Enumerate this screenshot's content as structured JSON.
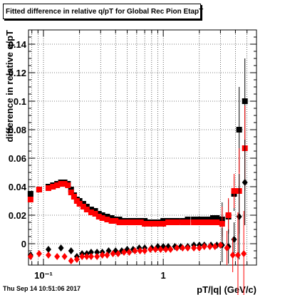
{
  "title": "Fitted difference in relative q/pT for Global Rec Pion EtapT",
  "timestamp": "Thu Sep 14 10:51:06 2017",
  "chart_data": {
    "type": "scatter",
    "title": "Fitted difference in relative q/pT for Global Rec Pion EtapT",
    "xlabel": "pT/|q| (GeV/c)",
    "ylabel": "difference in relative q/pT",
    "x_scale": "log",
    "xlim": [
      0.075,
      6.0
    ],
    "ylim": [
      -0.015,
      0.15
    ],
    "grid": true,
    "x_tick_labels": [
      "10⁻¹",
      "1"
    ],
    "y_tick_labels": [
      "0",
      "0.02",
      "0.04",
      "0.06",
      "0.08",
      "0.1",
      "0.12",
      "0.14"
    ],
    "colors": {
      "series_black": "#000000",
      "series_red": "#ff0000"
    },
    "series": [
      {
        "marker": "square",
        "color": "#000000",
        "x": [
          0.078,
          0.092,
          0.11,
          0.12,
          0.13,
          0.14,
          0.15,
          0.16,
          0.17,
          0.18,
          0.19,
          0.2,
          0.215,
          0.23,
          0.25,
          0.27,
          0.29,
          0.31,
          0.34,
          0.37,
          0.4,
          0.43,
          0.47,
          0.51,
          0.55,
          0.6,
          0.65,
          0.7,
          0.76,
          0.82,
          0.9,
          1.0,
          1.1,
          1.2,
          1.3,
          1.45,
          1.6,
          1.8,
          2.0,
          2.2,
          2.4,
          2.6,
          2.8,
          3.1,
          3.5,
          3.9,
          4.3,
          4.8
        ],
        "y": [
          0.035,
          0.038,
          0.04,
          0.041,
          0.042,
          0.043,
          0.043,
          0.042,
          0.038,
          0.034,
          0.031,
          0.03,
          0.028,
          0.026,
          0.024,
          0.023,
          0.021,
          0.02,
          0.019,
          0.018,
          0.017,
          0.017,
          0.016,
          0.016,
          0.016,
          0.016,
          0.016,
          0.016,
          0.015,
          0.015,
          0.015,
          0.016,
          0.016,
          0.016,
          0.016,
          0.016,
          0.017,
          0.017,
          0.017,
          0.017,
          0.017,
          0.018,
          0.018,
          0.017,
          0.019,
          0.035,
          0.08,
          0.1
        ]
      },
      {
        "marker": "square",
        "color": "#ff0000",
        "x": [
          0.078,
          0.092,
          0.11,
          0.12,
          0.13,
          0.14,
          0.15,
          0.16,
          0.17,
          0.18,
          0.19,
          0.2,
          0.215,
          0.23,
          0.25,
          0.27,
          0.29,
          0.31,
          0.34,
          0.37,
          0.4,
          0.43,
          0.47,
          0.51,
          0.55,
          0.6,
          0.65,
          0.7,
          0.76,
          0.82,
          0.9,
          1.0,
          1.1,
          1.2,
          1.3,
          1.45,
          1.6,
          1.8,
          2.0,
          2.2,
          2.4,
          2.6,
          2.8,
          3.1,
          3.5,
          3.9,
          4.3,
          4.8
        ],
        "y": [
          0.031,
          0.038,
          0.039,
          0.04,
          0.041,
          0.042,
          0.042,
          0.041,
          0.036,
          0.033,
          0.03,
          0.028,
          0.026,
          0.024,
          0.022,
          0.021,
          0.019,
          0.018,
          0.017,
          0.016,
          0.016,
          0.015,
          0.015,
          0.015,
          0.015,
          0.015,
          0.015,
          0.014,
          0.014,
          0.014,
          0.014,
          0.014,
          0.015,
          0.015,
          0.015,
          0.015,
          0.015,
          0.015,
          0.015,
          0.015,
          0.015,
          0.015,
          0.015,
          0.014,
          0.02,
          0.037,
          0.037,
          0.067
        ]
      },
      {
        "marker": "diamond",
        "color": "#000000",
        "x": [
          0.078,
          0.11,
          0.14,
          0.17,
          0.19,
          0.21,
          0.23,
          0.25,
          0.28,
          0.31,
          0.35,
          0.4,
          0.45,
          0.5,
          0.56,
          0.63,
          0.7,
          0.8,
          0.9,
          1.0,
          1.1,
          1.25,
          1.4,
          1.6,
          1.8,
          2.0,
          2.2,
          2.5,
          2.8,
          3.1,
          3.5,
          3.9,
          4.3,
          4.8
        ],
        "y": [
          -0.008,
          -0.004,
          -0.003,
          -0.005,
          -0.009,
          -0.007,
          -0.007,
          -0.006,
          -0.006,
          -0.006,
          -0.005,
          -0.005,
          -0.005,
          -0.004,
          -0.004,
          -0.003,
          -0.003,
          -0.003,
          -0.002,
          -0.002,
          -0.002,
          -0.002,
          -0.002,
          -0.002,
          -0.001,
          -0.001,
          -0.001,
          -0.001,
          -0.001,
          -0.001,
          -0.002,
          0.003,
          0.019,
          0.043
        ]
      },
      {
        "marker": "diamond",
        "color": "#ff0000",
        "x": [
          0.078,
          0.092,
          0.11,
          0.13,
          0.15,
          0.17,
          0.19,
          0.21,
          0.23,
          0.25,
          0.28,
          0.31,
          0.34,
          0.38,
          0.42,
          0.47,
          0.52,
          0.58,
          0.64,
          0.7,
          0.78,
          0.86,
          0.95,
          1.05,
          1.15,
          1.3,
          1.45,
          1.6,
          1.8,
          2.0,
          2.2,
          2.45,
          2.7,
          3.0,
          3.4,
          3.8,
          4.2,
          4.7
        ],
        "y": [
          -0.009,
          -0.007,
          -0.008,
          -0.009,
          -0.009,
          -0.012,
          -0.011,
          -0.009,
          -0.009,
          -0.009,
          -0.009,
          -0.008,
          -0.008,
          -0.007,
          -0.007,
          -0.006,
          -0.006,
          -0.005,
          -0.005,
          -0.005,
          -0.004,
          -0.004,
          -0.004,
          -0.004,
          -0.004,
          -0.003,
          -0.003,
          -0.003,
          -0.003,
          -0.003,
          -0.002,
          -0.002,
          -0.002,
          -0.001,
          -0.003,
          -0.008,
          -0.008,
          -0.007
        ]
      }
    ]
  }
}
